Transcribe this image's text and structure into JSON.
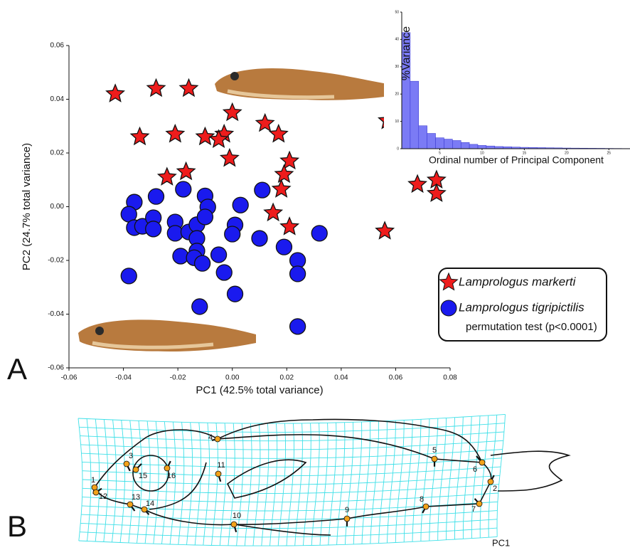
{
  "chart_data": [
    {
      "type": "scatter",
      "xlabel": "PC1 (42.5% total variance)",
      "ylabel": "PC2 (24.7% total variance)",
      "xlim": [
        -0.06,
        0.08
      ],
      "ylim": [
        -0.06,
        0.06
      ],
      "xticks": [
        -0.06,
        -0.04,
        -0.02,
        {
          "value": 0,
          "label": "0.00"
        },
        0.02,
        0.04,
        0.06,
        0.08
      ],
      "yticks": [
        -0.06,
        -0.04,
        -0.02,
        {
          "value": 0,
          "label": "0.00"
        },
        0.02,
        0.04,
        0.06
      ],
      "series": [
        {
          "name": "Lamprologus markerti",
          "color": "#ee1c1c",
          "marker": "star",
          "x": [
            -0.043,
            -0.028,
            -0.016,
            -0.034,
            -0.021,
            -0.01,
            -0.003,
            -0.005,
            0.0,
            -0.001,
            -0.024,
            -0.017,
            0.012,
            0.017,
            0.021,
            0.019,
            0.018,
            0.015,
            0.021,
            0.057,
            0.068,
            0.075,
            0.075,
            0.056
          ],
          "values": [
            0.042,
            0.044,
            0.044,
            0.026,
            0.027,
            0.026,
            0.027,
            0.025,
            0.035,
            0.018,
            0.011,
            0.013,
            0.031,
            0.027,
            0.017,
            0.012,
            0.0065,
            -0.0023,
            -0.0075,
            0.032,
            0.0083,
            0.0099,
            0.0049,
            -0.0091
          ]
        },
        {
          "name": "Lamprologus tigripictilis",
          "color": "#1a1aee",
          "marker": "circle",
          "x": [
            -0.036,
            -0.038,
            -0.036,
            -0.033,
            -0.029,
            -0.029,
            -0.028,
            -0.018,
            -0.021,
            -0.021,
            -0.016,
            -0.013,
            -0.019,
            -0.013,
            -0.013,
            -0.014,
            -0.011,
            -0.01,
            -0.009,
            -0.01,
            -0.005,
            -0.003,
            0.001,
            0.0,
            0.003,
            0.001,
            -0.012,
            -0.038,
            0.011,
            0.01,
            0.019,
            0.024,
            0.024,
            0.024,
            0.032
          ],
          "values": [
            0.0017,
            -0.0028,
            -0.0078,
            -0.0073,
            -0.0041,
            -0.0083,
            0.0038,
            0.0065,
            -0.0057,
            -0.0099,
            -0.0094,
            -0.0067,
            -0.0184,
            -0.0118,
            -0.0165,
            -0.019,
            -0.0211,
            0.004,
            -0.0001,
            -0.0038,
            -0.0179,
            -0.0245,
            -0.0068,
            -0.0102,
            0.0006,
            -0.0325,
            -0.0372,
            -0.0258,
            0.0062,
            -0.0118,
            -0.015,
            -0.02,
            -0.025,
            -0.0446,
            -0.0099
          ]
        }
      ],
      "annotation": "permutation test (p<0.0001)"
    },
    {
      "type": "bar",
      "xlabel": "Ordinal number of Principal Component",
      "ylabel": "%Variance",
      "color": "#7b7bf5",
      "x": [
        1,
        2,
        3,
        4,
        5,
        6,
        7,
        8,
        9,
        10,
        11,
        12,
        13,
        14,
        15,
        16,
        17,
        18,
        19,
        20,
        21,
        22,
        23,
        24,
        25,
        26,
        27
      ],
      "values": [
        42.5,
        24.7,
        8.4,
        5.6,
        4.0,
        3.5,
        3.0,
        2.3,
        1.6,
        1.2,
        1.0,
        0.8,
        0.7,
        0.6,
        0.5,
        0.45,
        0.4,
        0.35,
        0.3,
        0.25,
        0.22,
        0.2,
        0.17,
        0.15,
        0.12,
        0.1,
        0.08
      ],
      "xlim": [
        0.5,
        27.5
      ],
      "ylim": [
        0,
        50
      ],
      "xticks": [
        5,
        10,
        15,
        20,
        25
      ],
      "yticks": [
        0,
        10,
        20,
        30,
        40,
        50
      ]
    }
  ],
  "panel_labels": [
    "A",
    "B"
  ],
  "diagram": {
    "landmarks": [
      "1",
      "2",
      "3",
      "4",
      "5",
      "6",
      "7",
      "8",
      "9",
      "10",
      "11",
      "12",
      "13",
      "14",
      "15",
      "16"
    ],
    "axis_label": "PC1"
  }
}
